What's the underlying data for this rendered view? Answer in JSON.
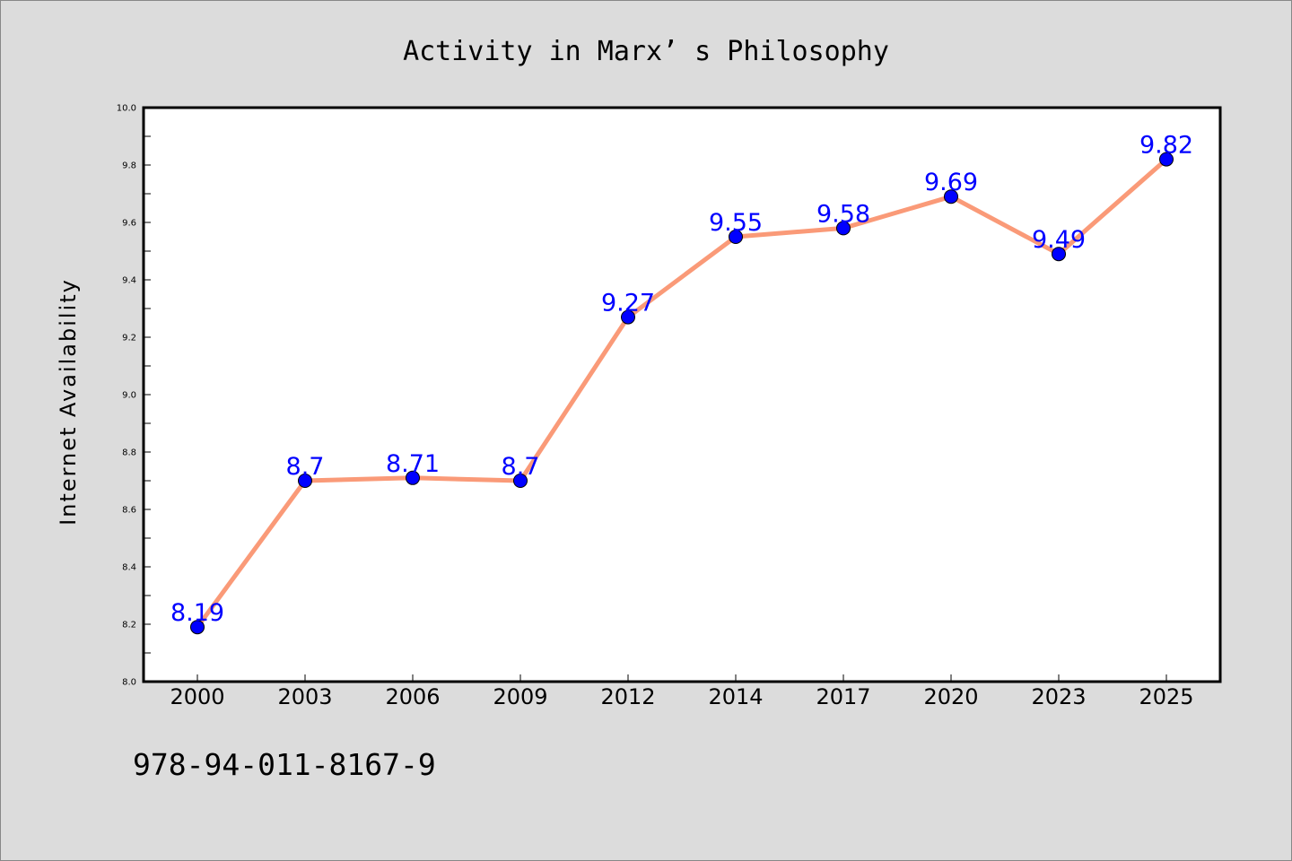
{
  "chart_data": {
    "type": "line",
    "title": "Activity in Marx’ s Philosophy",
    "xlabel": "",
    "ylabel": "Internet Availability",
    "categories": [
      "2000",
      "2003",
      "2006",
      "2009",
      "2012",
      "2014",
      "2017",
      "2020",
      "2023",
      "2025"
    ],
    "series": [
      {
        "values": [
          8.19,
          8.7,
          8.71,
          8.7,
          9.27,
          9.55,
          9.58,
          9.69,
          9.49,
          9.82
        ],
        "data_labels": [
          "8.19",
          "8.7",
          "8.71",
          "8.7",
          "9.27",
          "9.55",
          "9.58",
          "9.69",
          "9.49",
          "9.82"
        ],
        "line_color": "#fa9a78",
        "marker_color": "#0000ff",
        "label_color": "#0000ff"
      }
    ],
    "ylim": [
      8.0,
      10.0
    ],
    "yticks": [
      "8.0",
      "8.2",
      "8.4",
      "8.6",
      "8.8",
      "9.0",
      "9.2",
      "9.4",
      "9.6",
      "9.8",
      "10.0"
    ],
    "grid": false,
    "legend": "none",
    "background_color": "#dcdcdc",
    "plot_background_color": "#ffffff"
  },
  "footer": {
    "isbn": "978-94-011-8167-9"
  }
}
